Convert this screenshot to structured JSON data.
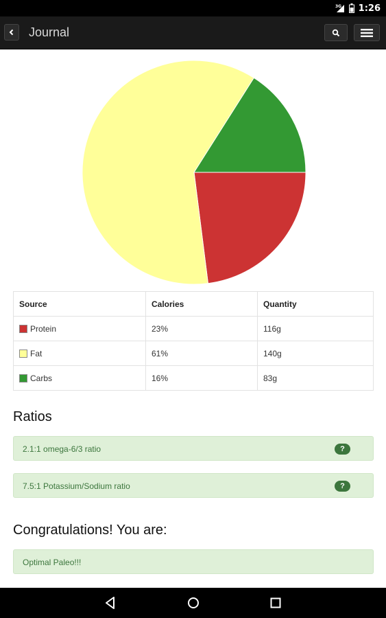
{
  "status_bar": {
    "network": "3G",
    "time": "1:26",
    "icons": [
      "signal-icon",
      "battery-icon"
    ]
  },
  "app_bar": {
    "title": "Journal",
    "back_icon": "chevron-left-icon",
    "search_icon": "search-icon",
    "menu_icon": "hamburger-menu-icon"
  },
  "chart_data": {
    "type": "pie",
    "title": "",
    "slices": [
      {
        "label": "Protein",
        "value": 23,
        "color": "#cc3333"
      },
      {
        "label": "Fat",
        "value": 61,
        "color": "#ffff99"
      },
      {
        "label": "Carbs",
        "value": 16,
        "color": "#339933"
      }
    ],
    "legend": "table-below"
  },
  "macro_table": {
    "headers": [
      "Source",
      "Calories",
      "Quantity"
    ],
    "rows": [
      {
        "source": "Protein",
        "calories": "23%",
        "quantity": "116g",
        "color": "#cc3333"
      },
      {
        "source": "Fat",
        "calories": "61%",
        "quantity": "140g",
        "color": "#ffff99"
      },
      {
        "source": "Carbs",
        "calories": "16%",
        "quantity": "83g",
        "color": "#339933"
      }
    ]
  },
  "ratios": {
    "heading": "Ratios",
    "items": [
      {
        "text": "2.1:1 omega-6/3 ratio",
        "badge": "?"
      },
      {
        "text": "7.5:1 Potassium/Sodium ratio",
        "badge": "?"
      }
    ]
  },
  "congrats": {
    "heading": "Congratulations! You are:",
    "result": "Optimal Paleo!!!"
  },
  "nav_bar": {
    "icons": [
      "back-triangle-icon",
      "home-circle-icon",
      "recents-square-icon"
    ]
  },
  "colors": {
    "success_bg": "#dff0d8",
    "success_text": "#3c763d",
    "bar_bg": "#1a1a1a"
  }
}
